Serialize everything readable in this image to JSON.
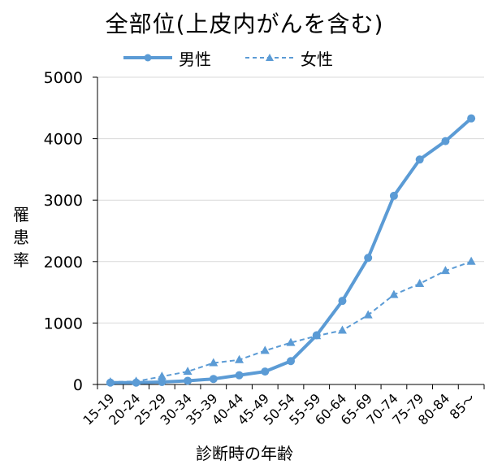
{
  "chart_data": {
    "type": "line",
    "title": "全部位(上皮内がんを含む)",
    "xlabel": "診断時の年齢",
    "ylabel": "罹患率",
    "categories": [
      "15-19",
      "20-24",
      "25-29",
      "30-34",
      "35-39",
      "40-44",
      "45-49",
      "50-54",
      "55-59",
      "60-64",
      "65-69",
      "70-74",
      "75-79",
      "80-84",
      "85〜"
    ],
    "series": [
      {
        "name": "男性",
        "style": "solid",
        "marker": "circle",
        "values": [
          30,
          30,
          40,
          60,
          90,
          150,
          210,
          380,
          800,
          1360,
          2060,
          3070,
          3660,
          3960,
          4330
        ]
      },
      {
        "name": "女性",
        "style": "dashed",
        "marker": "triangle",
        "values": [
          40,
          50,
          130,
          210,
          350,
          400,
          550,
          680,
          790,
          880,
          1130,
          1460,
          1640,
          1850,
          2000
        ]
      }
    ],
    "ylim": [
      0,
      5000
    ],
    "yticks": [
      0,
      1000,
      2000,
      3000,
      4000,
      5000
    ],
    "grid": true,
    "legend_position": "top",
    "line_color": "#5B9BD5"
  }
}
